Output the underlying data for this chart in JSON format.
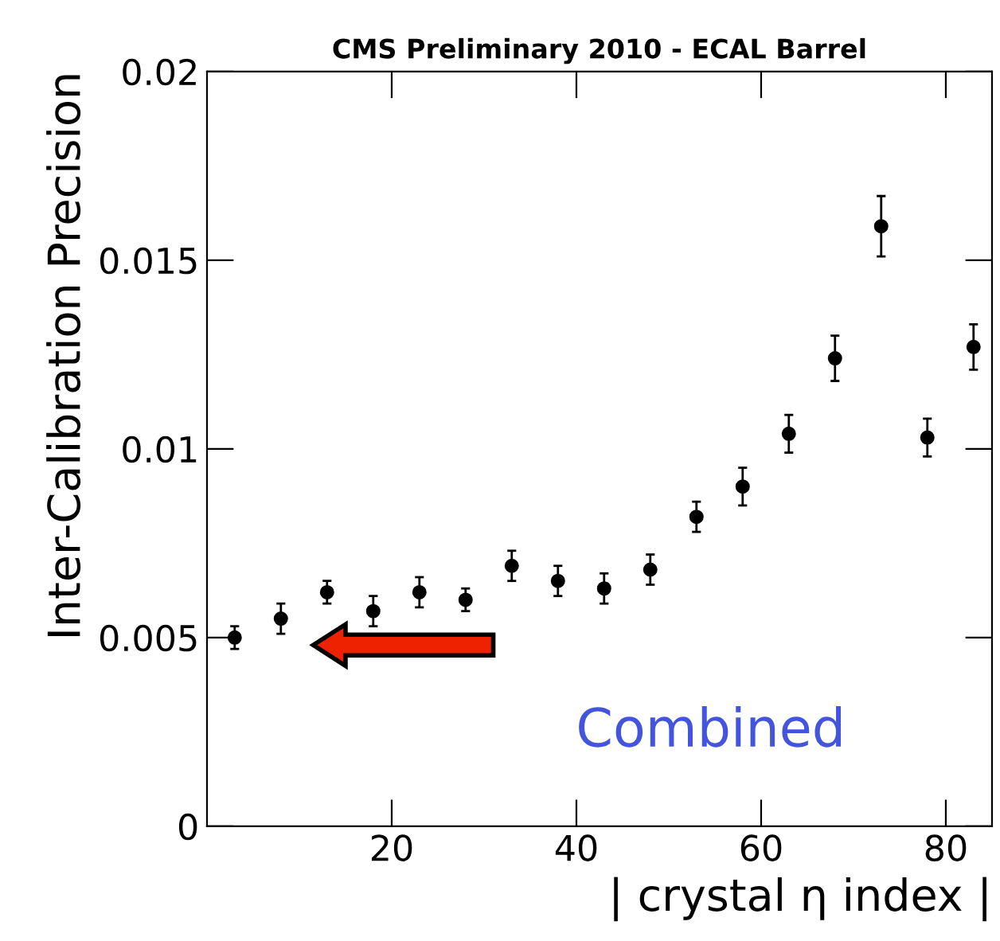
{
  "chart_data": {
    "type": "scatter",
    "title": "CMS Preliminary 2010 - ECAL Barrel",
    "xlabel": "| crystal η index |",
    "ylabel": "Inter-Calibration Precision",
    "x": [
      3,
      8,
      13,
      18,
      23,
      28,
      33,
      38,
      43,
      48,
      53,
      58,
      63,
      68,
      73,
      78,
      83
    ],
    "series": [
      {
        "color": "#000000",
        "values": [
          0.005,
          0.0055,
          0.0062,
          0.0057,
          0.0062,
          0.006,
          0.0069,
          0.0065,
          0.0063,
          0.0068,
          0.0082,
          0.009,
          0.0104,
          0.0124,
          0.0159,
          0.0103,
          0.0127
        ],
        "errors": [
          0.0003,
          0.0004,
          0.0003,
          0.0004,
          0.0004,
          0.0003,
          0.0004,
          0.0004,
          0.0004,
          0.0004,
          0.0004,
          0.0005,
          0.0005,
          0.0006,
          0.0008,
          0.0005,
          0.0006
        ]
      }
    ],
    "xlim": [
      0,
      85
    ],
    "ylim": [
      0,
      0.02
    ],
    "xticks": [
      20,
      40,
      60,
      80
    ],
    "yticks": [
      0,
      0.005,
      0.01,
      0.015,
      0.02
    ],
    "marker": "circle",
    "grid": false,
    "legend": false,
    "annotations": [
      "Combined"
    ]
  }
}
